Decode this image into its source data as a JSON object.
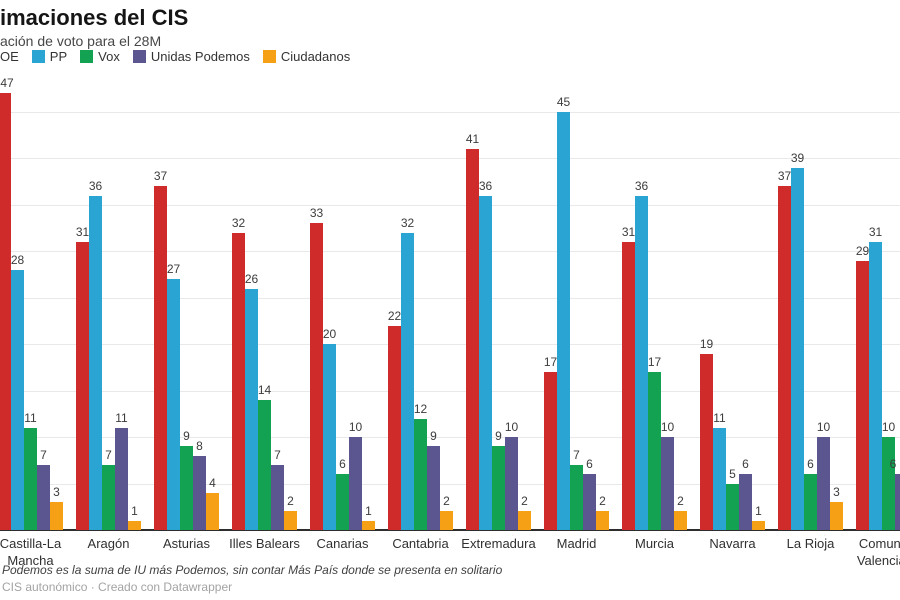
{
  "header": {
    "title": "imaciones del CIS",
    "subtitle": "ación de voto para el 28M"
  },
  "legend": {
    "position": "top",
    "items": [
      {
        "label": "OE",
        "party": "PSOE",
        "color": "#d02b2b",
        "swatch_visible": false
      },
      {
        "label": "PP",
        "party": "PP",
        "color": "#2aa5d3",
        "swatch_visible": true
      },
      {
        "label": "Vox",
        "party": "Vox",
        "color": "#13a152",
        "swatch_visible": true
      },
      {
        "label": "Unidas Podemos",
        "party": "Unidas Podemos",
        "color": "#5b5590",
        "swatch_visible": true
      },
      {
        "label": "Ciudadanos",
        "party": "Ciudadanos",
        "color": "#f6a016",
        "swatch_visible": true
      }
    ]
  },
  "chart_data": {
    "type": "bar",
    "title": "imaciones del CIS",
    "subtitle": "ación de voto para el 28M",
    "categories": [
      "Castilla-La Mancha",
      "Aragón",
      "Asturias",
      "Illes Balears",
      "Canarias",
      "Cantabria",
      "Extremadura",
      "Madrid",
      "Murcia",
      "Navarra",
      "La Rioja",
      "Comunitat Valenciana"
    ],
    "series": [
      {
        "name": "PSOE",
        "color": "#d02b2b",
        "values": [
          47,
          31,
          37,
          32,
          33,
          22,
          41,
          17,
          31,
          19,
          37,
          29
        ]
      },
      {
        "name": "PP",
        "color": "#2aa5d3",
        "values": [
          28,
          36,
          27,
          26,
          20,
          32,
          36,
          45,
          36,
          11,
          39,
          31
        ]
      },
      {
        "name": "Vox",
        "color": "#13a152",
        "values": [
          11,
          7,
          9,
          14,
          6,
          12,
          9,
          7,
          17,
          5,
          6,
          10
        ]
      },
      {
        "name": "Unidas Podemos",
        "color": "#5b5590",
        "values": [
          7,
          11,
          8,
          7,
          10,
          9,
          10,
          6,
          10,
          6,
          10,
          6
        ]
      },
      {
        "name": "Ciudadanos",
        "color": "#f6a016",
        "values": [
          3,
          1,
          4,
          2,
          1,
          2,
          2,
          2,
          2,
          1,
          3,
          null
        ]
      }
    ],
    "xlabel": "",
    "ylabel": "",
    "ylim": [
      0,
      45
    ],
    "grid": true,
    "grid_step": 5,
    "value_labels": true,
    "legend_position": "top"
  },
  "footer": {
    "note": "Podemos es la suma de IU más Podemos, sin contar Más País donde se presenta en solitario",
    "source": "CIS autonómico · Creado con Datawrapper"
  }
}
